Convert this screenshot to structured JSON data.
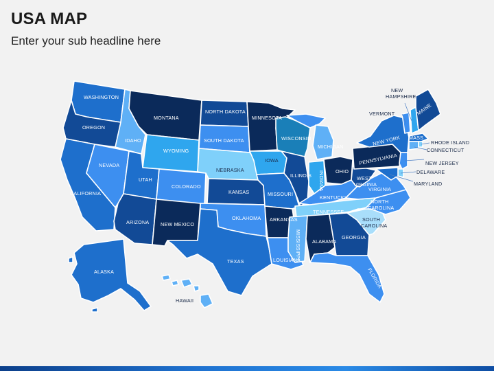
{
  "header": {
    "title": "USA MAP",
    "subtitle": "Enter your sub headline here"
  },
  "colors": {
    "navy": "#0b2a5a",
    "dark": "#124a96",
    "mid": "#1e6fcc",
    "bright": "#3d8ff0",
    "light": "#5fb0f6",
    "cyan": "#7fd0fa",
    "pale": "#a9defb"
  },
  "states": {
    "washington": "WASHINGTON",
    "oregon": "OREGON",
    "california": "CALIFORNIA",
    "idaho": "IDAHO",
    "nevada": "NEVADA",
    "montana": "MONTANA",
    "wyoming": "WYOMING",
    "utah": "UTAH",
    "colorado": "COLORADO",
    "arizona": "ARIZONA",
    "new_mexico": "NEW MEXICO",
    "north_dakota": "NORTH DAKOTA",
    "south_dakota": "SOUTH DAKOTA",
    "nebraska": "NEBRASKA",
    "kansas": "KANSAS",
    "oklahoma": "OKLAHOMA",
    "texas": "TEXAS",
    "minnesota": "MINNESOTA",
    "iowa": "IOWA",
    "missouri": "MISSOURI",
    "arkansas": "ARKANSAS",
    "louisiana": "LOUISIANA",
    "wisconsin": "WISCONSIN",
    "illinois": "ILLINOIS",
    "michigan": "MICHIGAN",
    "indiana": "INDIANA",
    "ohio": "OHIO",
    "kentucky": "KENTUCKY",
    "tennessee": "TENNESSEE",
    "mississippi": "MISSISSIPPI",
    "alabama": "ALABAMA",
    "georgia": "GEORGIA",
    "florida": "FLORIDA",
    "south_carolina_1": "SOUTH",
    "south_carolina_2": "CAROLINA",
    "north_carolina_1": "NORTH",
    "north_carolina_2": "CAROLINA",
    "virginia": "VIRGINIA",
    "west_virginia_1": "WEST",
    "west_virginia_2": "VIRGINIA",
    "pennsylvania": "PENNSYLVANIA",
    "new_york": "NEW YORK",
    "vermont": "VERMONT",
    "new_hampshire_1": "NEW",
    "new_hampshire_2": "HAMPSHIRE",
    "maine": "MAINE",
    "mass": "MASS",
    "rhode_island": "RHODE ISLAND",
    "connecticut": "CONNECTICUT",
    "new_jersey": "NEW JERSEY",
    "delaware": "DELAWARE",
    "maryland": "MARYLAND",
    "alaska": "ALASKA",
    "hawaii": "HAWAII"
  }
}
